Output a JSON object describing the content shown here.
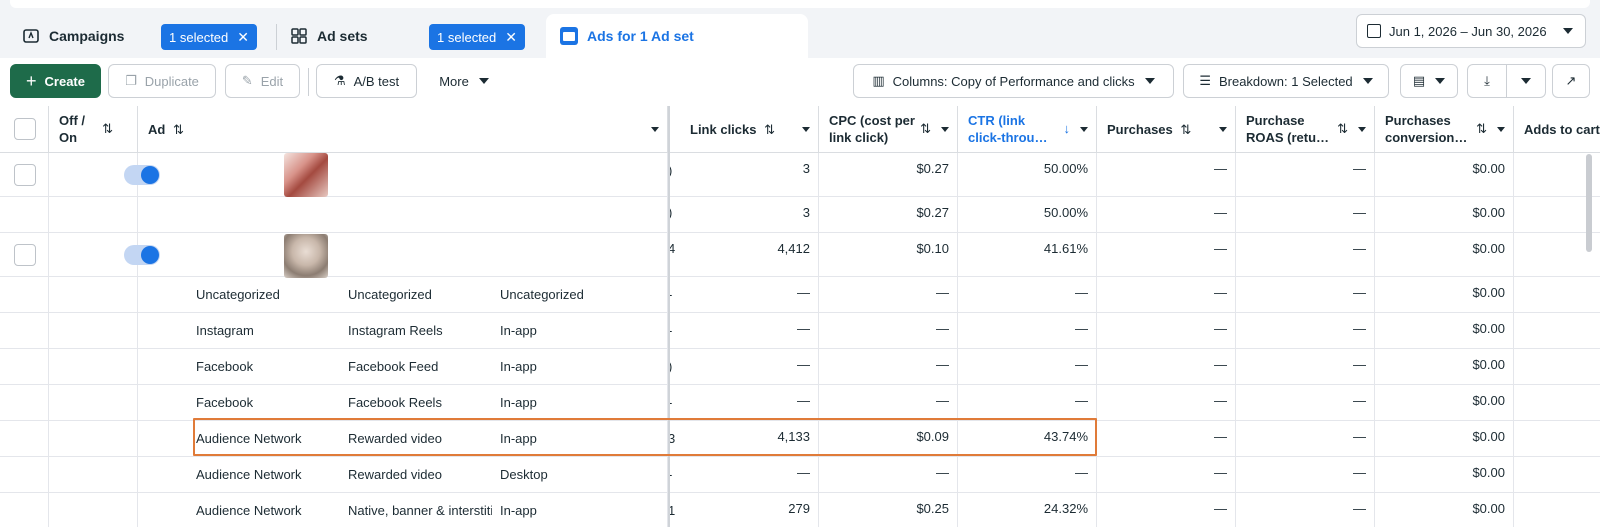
{
  "tabs": {
    "campaigns": {
      "label": "Campaigns",
      "chip": "1 selected"
    },
    "adsets": {
      "label": "Ad sets",
      "chip": "1 selected"
    },
    "ads": {
      "label": "Ads for 1 Ad set"
    }
  },
  "date_range": "Jun 1, 2026 – Jun 30, 2026",
  "toolbar": {
    "create": "Create",
    "duplicate": "Duplicate",
    "edit": "Edit",
    "ab_test": "A/B test",
    "more": "More",
    "columns": "Columns: Copy of Performance and clicks",
    "breakdown": "Breakdown: 1 Selected"
  },
  "columns": {
    "off_on": "Off / On",
    "ad": "Ad",
    "link_clicks": "Link clicks",
    "cpc_line1": "CPC (cost per",
    "cpc_line2": "link click)",
    "ctr_line1": "CTR (link",
    "ctr_line2": "click-throu…",
    "purchases": "Purchases",
    "roas_line1": "Purchase",
    "roas_line2": "ROAS (retu…",
    "conv_line1": "Purchases",
    "conv_line2": "conversion…",
    "adds_to_cart": "Adds to cart"
  },
  "rows": [
    {
      "platform": "",
      "placement": "",
      "device": "",
      "clip": ")",
      "link_clicks": "3",
      "cpc": "$0.27",
      "ctr": "50.00%",
      "purchases": "—",
      "roas": "—",
      "conv": "$0.00"
    },
    {
      "platform": "",
      "placement": "",
      "device": "",
      "clip": ")",
      "link_clicks": "3",
      "cpc": "$0.27",
      "ctr": "50.00%",
      "purchases": "—",
      "roas": "—",
      "conv": "$0.00"
    },
    {
      "platform": "",
      "placement": "",
      "device": "",
      "clip": "4",
      "link_clicks": "4,412",
      "cpc": "$0.10",
      "ctr": "41.61%",
      "purchases": "—",
      "roas": "—",
      "conv": "$0.00"
    },
    {
      "platform": "Uncategorized",
      "placement": "Uncategorized",
      "device": "Uncategorized",
      "clip": "-",
      "link_clicks": "—",
      "cpc": "—",
      "ctr": "—",
      "purchases": "—",
      "roas": "—",
      "conv": "$0.00"
    },
    {
      "platform": "Instagram",
      "placement": "Instagram Reels",
      "device": "In-app",
      "clip": "-",
      "link_clicks": "—",
      "cpc": "—",
      "ctr": "—",
      "purchases": "—",
      "roas": "—",
      "conv": "$0.00"
    },
    {
      "platform": "Facebook",
      "placement": "Facebook Feed",
      "device": "In-app",
      "clip": ")",
      "link_clicks": "—",
      "cpc": "—",
      "ctr": "—",
      "purchases": "—",
      "roas": "—",
      "conv": "$0.00"
    },
    {
      "platform": "Facebook",
      "placement": "Facebook Reels",
      "device": "In-app",
      "clip": "-",
      "link_clicks": "—",
      "cpc": "—",
      "ctr": "—",
      "purchases": "—",
      "roas": "—",
      "conv": "$0.00"
    },
    {
      "platform": "Audience Network",
      "placement": "Rewarded video",
      "device": "In-app",
      "clip": "3",
      "link_clicks": "4,133",
      "cpc": "$0.09",
      "ctr": "43.74%",
      "purchases": "—",
      "roas": "—",
      "conv": "$0.00"
    },
    {
      "platform": "Audience Network",
      "placement": "Rewarded video",
      "device": "Desktop",
      "clip": "-",
      "link_clicks": "—",
      "cpc": "—",
      "ctr": "—",
      "purchases": "—",
      "roas": "—",
      "conv": "$0.00"
    },
    {
      "platform": "Audience Network",
      "placement": "Native, banner & interstitial",
      "device": "In-app",
      "clip": "1",
      "link_clicks": "279",
      "cpc": "$0.25",
      "ctr": "24.32%",
      "purchases": "—",
      "roas": "—",
      "conv": "$0.00"
    }
  ]
}
